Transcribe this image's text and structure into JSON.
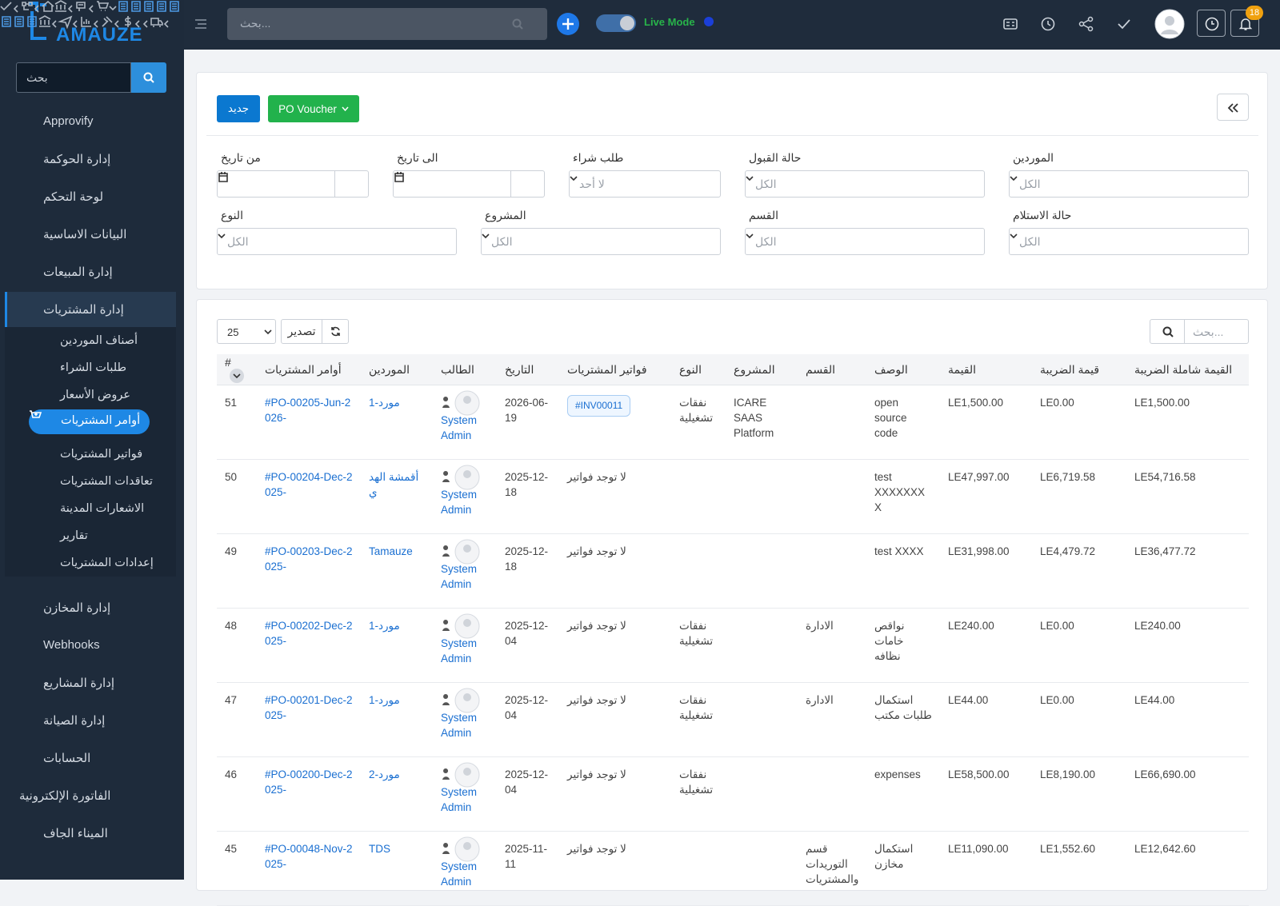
{
  "sidebar": {
    "logo": "AMAUZE",
    "search_placeholder": "بحث",
    "menu": [
      {
        "label": "Approvify",
        "expandable": true
      },
      {
        "label": "إدارة الحوكمة",
        "expandable": true
      },
      {
        "label": "لوحة التحكم",
        "expandable": false
      },
      {
        "label": "البيانات الاساسية",
        "expandable": true
      },
      {
        "label": "إدارة المبيعات",
        "expandable": true
      },
      {
        "label": "إدارة المشتريات",
        "expandable": true,
        "active": true,
        "children": [
          "أصناف الموردين",
          "طلبات الشراء",
          "عروض الأسعار",
          "أوامر المشتريات",
          "فواتير المشتريات",
          "تعاقدات المشتريات",
          "الاشعارات المدينة",
          "تقارير",
          "إعدادات المشتريات"
        ],
        "active_child": 3
      },
      {
        "label": "إدارة المخازن",
        "expandable": true
      },
      {
        "label": "Webhooks",
        "expandable": true
      },
      {
        "label": "إدارة المشاريع",
        "expandable": true
      },
      {
        "label": "إدارة الصيانة",
        "expandable": true
      },
      {
        "label": "الحسابات",
        "expandable": true
      },
      {
        "label": "الفاتورة الإلكترونية",
        "expandable": true
      },
      {
        "label": "الميناء الجاف",
        "expandable": true
      }
    ]
  },
  "topbar": {
    "search_placeholder": "بحث...",
    "live_mode": "Live Mode",
    "notification_count": "18"
  },
  "toolbar": {
    "new_button": "جديد",
    "voucher_button": "PO Voucher"
  },
  "filters": [
    {
      "label": "من تاريخ",
      "kind": "date"
    },
    {
      "label": "الى تاريخ",
      "kind": "date"
    },
    {
      "label": "طلب شراء",
      "kind": "select",
      "placeholder": "لا أحد"
    },
    {
      "label": "حالة القبول",
      "kind": "select",
      "placeholder": "الكل"
    },
    {
      "label": "الموردين",
      "kind": "select",
      "placeholder": "الكل"
    },
    {
      "label": "النوع",
      "kind": "select",
      "placeholder": "الكل"
    },
    {
      "label": "المشروع",
      "kind": "select",
      "placeholder": "الكل"
    },
    {
      "label": "القسم",
      "kind": "select",
      "placeholder": "الكل"
    },
    {
      "label": "حالة الاستلام",
      "kind": "select",
      "placeholder": "الكل"
    }
  ],
  "table_controls": {
    "page_size": "25",
    "export": "تصدير",
    "search_placeholder": "بحث..."
  },
  "table": {
    "headers": [
      "#",
      "أوامر المشتريات",
      "الموردين",
      "الطالب",
      "التاريخ",
      "فواتير المشتريات",
      "النوع",
      "المشروع",
      "القسم",
      "الوصف",
      "القيمة",
      "قيمة الضريبة",
      "القيمة شاملة الضريبة"
    ],
    "rows": [
      [
        "51",
        "#PO-00205-Jun-2026-",
        "مورد-1",
        "System Admin",
        "2026-06-19",
        "#INV00011",
        "نفقات تشغيلية",
        "ICARE SAAS Platform",
        null,
        "open source code",
        "LE1,500.00",
        "LE0.00",
        "LE1,500.00"
      ],
      [
        "50",
        "#PO-00204-Dec-2025-",
        "أقمشة الهدي",
        "System Admin",
        "2025-12-18",
        "لا توجد فواتير",
        null,
        null,
        null,
        "test XXXXXXXX",
        "LE47,997.00",
        "LE6,719.58",
        "LE54,716.58"
      ],
      [
        "49",
        "#PO-00203-Dec-2025-",
        "Tamauze",
        "System Admin",
        "2025-12-18",
        "لا توجد فواتير",
        null,
        null,
        null,
        "test XXXX",
        "LE31,998.00",
        "LE4,479.72",
        "LE36,477.72"
      ],
      [
        "48",
        "#PO-00202-Dec-2025-",
        "مورد-1",
        "System Admin",
        "2025-12-04",
        "لا توجد فواتير",
        "نفقات تشغيلية",
        null,
        "الادارة",
        "نواقص خامات نظافه",
        "LE240.00",
        "LE0.00",
        "LE240.00"
      ],
      [
        "47",
        "#PO-00201-Dec-2025-",
        "مورد-1",
        "System Admin",
        "2025-12-04",
        "لا توجد فواتير",
        "نفقات تشغيلية",
        null,
        "الادارة",
        "استكمال طلبات مكتب",
        "LE44.00",
        "LE0.00",
        "LE44.00"
      ],
      [
        "46",
        "#PO-00200-Dec-2025-",
        "مورد-2",
        "System Admin",
        "2025-12-04",
        "لا توجد فواتير",
        "نفقات تشغيلية",
        null,
        null,
        "expenses",
        "LE58,500.00",
        "LE8,190.00",
        "LE66,690.00"
      ],
      [
        "45",
        "#PO-00048-Nov-2025-",
        "TDS",
        "System Admin",
        "2025-11-11",
        "لا توجد فواتير",
        null,
        null,
        "قسم التوريدات والمشتريات",
        "استكمال مخازن",
        "LE11,090.00",
        "LE1,552.60",
        "LE12,642.60"
      ]
    ]
  }
}
